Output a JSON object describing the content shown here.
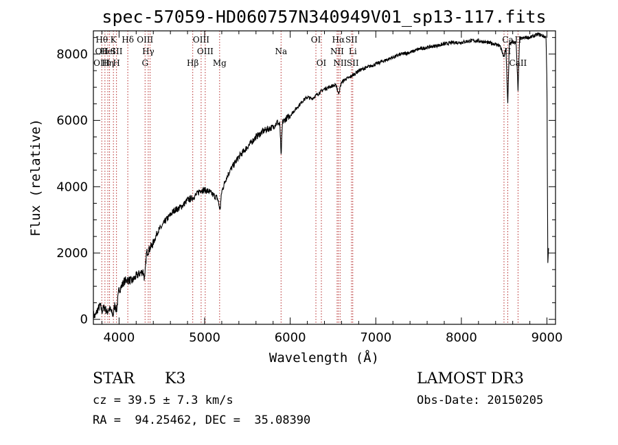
{
  "chart_data": {
    "type": "line",
    "title": "spec-57059-HD060757N340949V01_sp13-117.fits",
    "xlabel": "Wavelength (Å)",
    "ylabel": "Flux (relative)",
    "xlim": [
      3700,
      9100
    ],
    "ylim": [
      -150,
      8700
    ],
    "xticks": [
      4000,
      5000,
      6000,
      7000,
      8000,
      9000
    ],
    "yticks": [
      0,
      2000,
      4000,
      6000,
      8000
    ],
    "grid": false,
    "series": [
      {
        "name": "flux",
        "anchors": [
          [
            3700,
            150
          ],
          [
            3720,
            80
          ],
          [
            3750,
            300
          ],
          [
            3780,
            420
          ],
          [
            3800,
            250
          ],
          [
            3830,
            380
          ],
          [
            3860,
            200
          ],
          [
            3880,
            320
          ],
          [
            3900,
            280
          ],
          [
            3930,
            120
          ],
          [
            3950,
            450
          ],
          [
            3970,
            250
          ],
          [
            3990,
            700
          ],
          [
            4000,
            900
          ],
          [
            4030,
            1000
          ],
          [
            4060,
            1150
          ],
          [
            4100,
            1200
          ],
          [
            4150,
            1150
          ],
          [
            4200,
            1300
          ],
          [
            4250,
            1400
          ],
          [
            4280,
            1450
          ],
          [
            4300,
            1200
          ],
          [
            4320,
            2000
          ],
          [
            4350,
            2100
          ],
          [
            4400,
            2300
          ],
          [
            4450,
            2650
          ],
          [
            4500,
            2800
          ],
          [
            4550,
            3000
          ],
          [
            4600,
            3150
          ],
          [
            4650,
            3300
          ],
          [
            4700,
            3350
          ],
          [
            4750,
            3450
          ],
          [
            4800,
            3600
          ],
          [
            4850,
            3650
          ],
          [
            4900,
            3750
          ],
          [
            4950,
            3900
          ],
          [
            5000,
            3900
          ],
          [
            5050,
            3850
          ],
          [
            5100,
            3750
          ],
          [
            5150,
            3650
          ],
          [
            5180,
            3300
          ],
          [
            5200,
            3850
          ],
          [
            5250,
            4250
          ],
          [
            5300,
            4500
          ],
          [
            5350,
            4700
          ],
          [
            5400,
            4900
          ],
          [
            5450,
            5050
          ],
          [
            5500,
            5200
          ],
          [
            5550,
            5350
          ],
          [
            5600,
            5500
          ],
          [
            5650,
            5600
          ],
          [
            5700,
            5700
          ],
          [
            5750,
            5750
          ],
          [
            5800,
            5800
          ],
          [
            5850,
            5950
          ],
          [
            5880,
            5850
          ],
          [
            5893,
            4900
          ],
          [
            5910,
            5950
          ],
          [
            5950,
            6050
          ],
          [
            6000,
            6150
          ],
          [
            6050,
            6300
          ],
          [
            6100,
            6450
          ],
          [
            6150,
            6600
          ],
          [
            6200,
            6700
          ],
          [
            6250,
            6650
          ],
          [
            6300,
            6750
          ],
          [
            6350,
            6850
          ],
          [
            6400,
            6950
          ],
          [
            6450,
            7000
          ],
          [
            6500,
            7050
          ],
          [
            6540,
            7050
          ],
          [
            6563,
            6800
          ],
          [
            6580,
            6950
          ],
          [
            6600,
            7150
          ],
          [
            6650,
            7250
          ],
          [
            6700,
            7300
          ],
          [
            6750,
            7400
          ],
          [
            6800,
            7500
          ],
          [
            6850,
            7550
          ],
          [
            6900,
            7600
          ],
          [
            6950,
            7650
          ],
          [
            7000,
            7700
          ],
          [
            7050,
            7750
          ],
          [
            7100,
            7800
          ],
          [
            7150,
            7850
          ],
          [
            7200,
            7900
          ],
          [
            7300,
            8000
          ],
          [
            7400,
            8050
          ],
          [
            7500,
            8150
          ],
          [
            7600,
            8200
          ],
          [
            7700,
            8250
          ],
          [
            7800,
            8300
          ],
          [
            7900,
            8350
          ],
          [
            8000,
            8350
          ],
          [
            8100,
            8400
          ],
          [
            8200,
            8400
          ],
          [
            8300,
            8350
          ],
          [
            8400,
            8300
          ],
          [
            8450,
            8250
          ],
          [
            8498,
            7900
          ],
          [
            8520,
            8200
          ],
          [
            8542,
            6500
          ],
          [
            8560,
            8300
          ],
          [
            8600,
            8350
          ],
          [
            8640,
            8350
          ],
          [
            8662,
            6900
          ],
          [
            8680,
            8450
          ],
          [
            8750,
            8500
          ],
          [
            8800,
            8500
          ],
          [
            8850,
            8550
          ],
          [
            8900,
            8600
          ],
          [
            8950,
            8550
          ],
          [
            8990,
            8500
          ],
          [
            9000,
            7100
          ],
          [
            9010,
            1700
          ],
          [
            9020,
            2200
          ]
        ]
      }
    ],
    "lines": [
      {
        "w": 3798,
        "l1": "Hθ",
        "l2": "OII",
        "l3": "OIII"
      },
      {
        "w": 3835,
        "l1": "",
        "l2": "",
        "l3": ""
      },
      {
        "w": 3869,
        "l1": "",
        "l2": "HeI",
        "l3": "Hη"
      },
      {
        "w": 3889,
        "l1": "",
        "l2": "",
        "l3": ""
      },
      {
        "w": 3934,
        "l1": "K",
        "l2": "",
        "l3": ""
      },
      {
        "w": 3970,
        "l1": "",
        "l2": "SII",
        "l3": "H"
      },
      {
        "w": 4102,
        "l1": "Hδ",
        "l2": "",
        "l3": ""
      },
      {
        "w": 4304,
        "l1": "OIII",
        "l2": "",
        "l3": "G"
      },
      {
        "w": 4341,
        "l1": "",
        "l2": "Hγ",
        "l3": ""
      },
      {
        "w": 4363,
        "l1": "",
        "l2": "",
        "l3": ""
      },
      {
        "w": 4861,
        "l1": "",
        "l2": "",
        "l3": "Hβ"
      },
      {
        "w": 4959,
        "l1": "OIII",
        "l2": "",
        "l3": ""
      },
      {
        "w": 5007,
        "l1": "",
        "l2": "OIII",
        "l3": ""
      },
      {
        "w": 5175,
        "l1": "",
        "l2": "",
        "l3": "Mg"
      },
      {
        "w": 5893,
        "l1": "",
        "l2": "Na",
        "l3": ""
      },
      {
        "w": 6300,
        "l1": "OI",
        "l2": "",
        "l3": ""
      },
      {
        "w": 6364,
        "l1": "",
        "l2": "",
        "l3": "OI"
      },
      {
        "w": 6548,
        "l1": "",
        "l2": "NII",
        "l3": ""
      },
      {
        "w": 6563,
        "l1": "Hα",
        "l2": "",
        "l3": ""
      },
      {
        "w": 6583,
        "l1": "",
        "l2": "",
        "l3": "NII"
      },
      {
        "w": 6716,
        "l1": "SII",
        "l2": "",
        "l3": ""
      },
      {
        "w": 6731,
        "l1": "",
        "l2": "Li",
        "l3": "SII"
      },
      {
        "w": 8498,
        "l1": "",
        "l2": "",
        "l3": ""
      },
      {
        "w": 8542,
        "l1": "Ca",
        "l2": "II",
        "l3": ""
      },
      {
        "w": 8662,
        "l1": "II",
        "l2": "",
        "l3": "CaII"
      }
    ]
  },
  "info": {
    "class_label": "STAR",
    "subclass": "K3",
    "survey": "LAMOST DR3",
    "cz": "cz = 39.5 ± 7.3 km/s",
    "obs_date": "Obs-Date: 20150205",
    "coords": "RA =  94.25462, DEC =  35.08390"
  }
}
